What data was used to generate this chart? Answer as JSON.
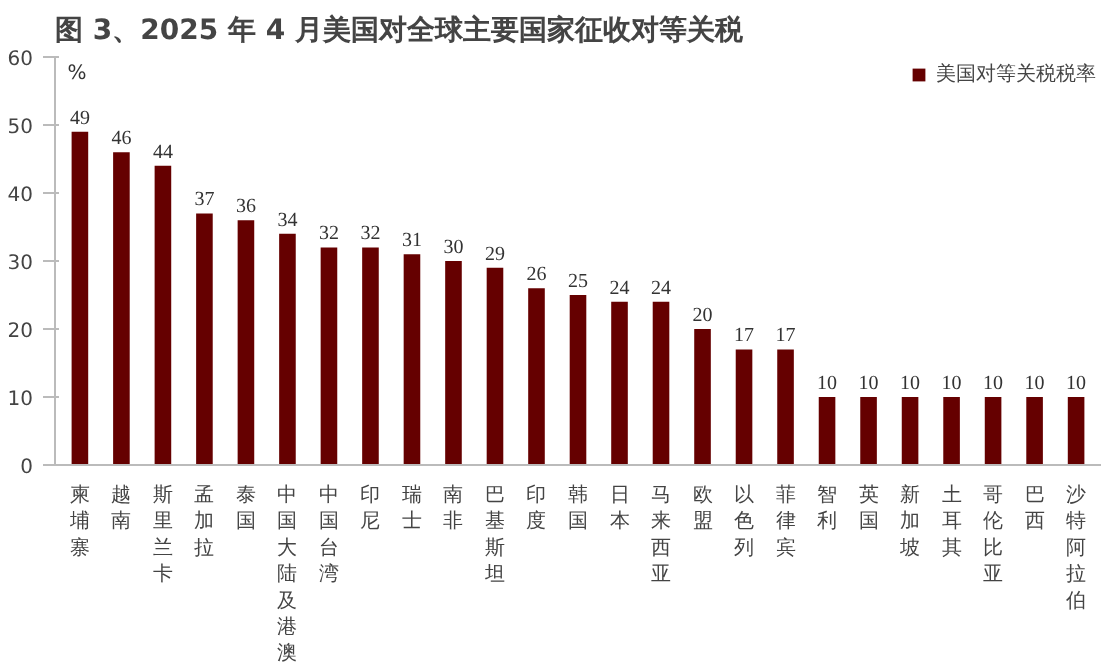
{
  "chart_data": {
    "type": "bar",
    "title": "图 3、2025 年 4 月美国对全球主要国家征收对等关税",
    "ylabel": "%",
    "categories": [
      "柬埔寨",
      "越南",
      "斯里兰卡",
      "孟加拉",
      "泰国",
      "中国大陆及港澳",
      "中国台湾",
      "印尼",
      "瑞士",
      "南非",
      "巴基斯坦",
      "印度",
      "韩国",
      "日本",
      "马来西亚",
      "欧盟",
      "以色列",
      "菲律宾",
      "智利",
      "英国",
      "新加坡",
      "土耳其",
      "哥伦比亚",
      "巴西",
      "沙特阿拉伯"
    ],
    "series": [
      {
        "name": "美国对等关税税率",
        "color": "#650000",
        "values": [
          49,
          46,
          44,
          37,
          36,
          34,
          32,
          32,
          31,
          30,
          29,
          26,
          25,
          24,
          24,
          20,
          17,
          17,
          10,
          10,
          10,
          10,
          10,
          10,
          10
        ]
      }
    ],
    "ylim": [
      0,
      60
    ],
    "yticks": [
      0,
      10,
      20,
      30,
      40,
      50,
      60
    ],
    "grid": false,
    "legend": "top right",
    "data_labels": true
  }
}
